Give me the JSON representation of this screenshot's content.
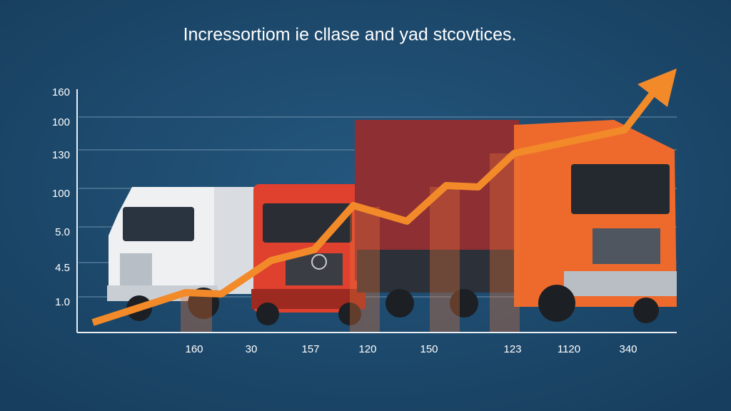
{
  "title": "Incressortiom ie cllase and yad stcovtices.",
  "y_labels": [
    "160",
    "100",
    "130",
    "100",
    "5.0",
    "4.5",
    "1.0"
  ],
  "x_labels": [
    "160",
    "30",
    "157",
    "120",
    "150",
    "123",
    "1120",
    "340"
  ]
}
